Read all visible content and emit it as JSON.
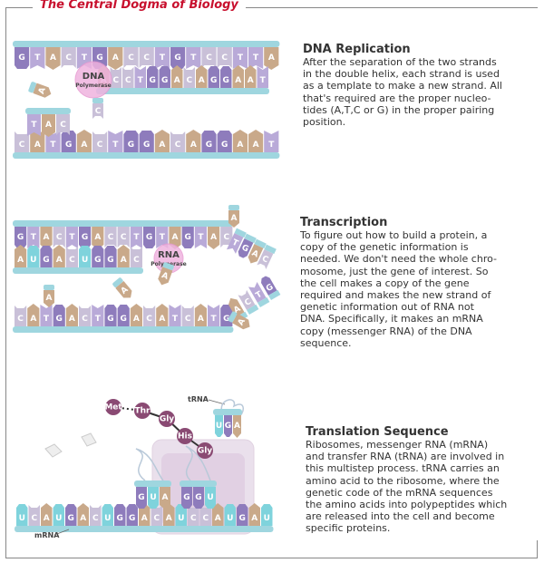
{
  "title": "The Central Dogma of Biology",
  "sections": [
    {
      "title": "DNA Replication",
      "text": "After the separation of the two strands\nin the double helix, each strand is used\nas a template to make a new strand. All\nthat's required are the proper nucleo-\ntides (A,T,C or G) in the proper pairing\nposition."
    },
    {
      "title": "Transcription",
      "text": "To figure out how to build a protein, a\ncopy of the genetic information is\nneeded. We don't need the whole chro-\nmosome, just the gene of interest. So\nthe cell makes a copy of the gene\nrequired and makes the new strand of\ngenetic information out of RNA not\nDNA. Specifically, it makes an mRNA\ncopy (messenger RNA) of the DNA\nsequence."
    },
    {
      "title": "Translation Sequence",
      "text": "Ribosomes, messenger RNA (mRNA)\nand transfer RNA (tRNA) are involved in\nthis multistep process. tRNA carries an\namino acid to the ribosome, where the\ngenetic code of the mRNA sequences\nthe amino acids into polypeptides which\nare released into the cell and become\nspecific proteins."
    }
  ],
  "replication": {
    "top_strand": "GTACTGACCTGTCCTTA",
    "new_top": "ACCTGGACAGGAAT",
    "bottom_strand": "CATGACTGGACAGGAAT",
    "new_bottom": "TAC",
    "enzyme_name": "DNA",
    "enzyme_sub": "Polymerase",
    "free_nucleotides": [
      "A",
      "C"
    ]
  },
  "transcription": {
    "top_strand": "GTACTGACCTGTAGTAC",
    "upper_tail": "TGAC",
    "rna_strand": "AUGACUGGAC",
    "bottom_strand": "CATGACTGGACATCATG",
    "lower_tail": "ACTG",
    "enzyme_name": "RNA",
    "enzyme_sub": "Polymerase"
  },
  "translation": {
    "mrna_strand": "UCAUGACUGGACAUCCAUGAU",
    "mrna_label": "mRNA",
    "trna_label": "tRNA",
    "amino_acids": [
      "Met",
      "Thr",
      "Gly",
      "His",
      "Gly"
    ],
    "anticodon_left": "GUA",
    "anticodon_right": "GGU",
    "free_trna_anticodon": "UGA"
  },
  "colors": {
    "title": "#c8102e",
    "A": "#c9a98a",
    "T": "#b9aad8",
    "G": "#8e7cbc",
    "C": "#c9c0d8",
    "U": "#7fd3dc",
    "backbone": "#9fd6df",
    "polymerase": "#efb3df",
    "amino": "#8a4a73",
    "ribosome": "#e4d6e6"
  }
}
